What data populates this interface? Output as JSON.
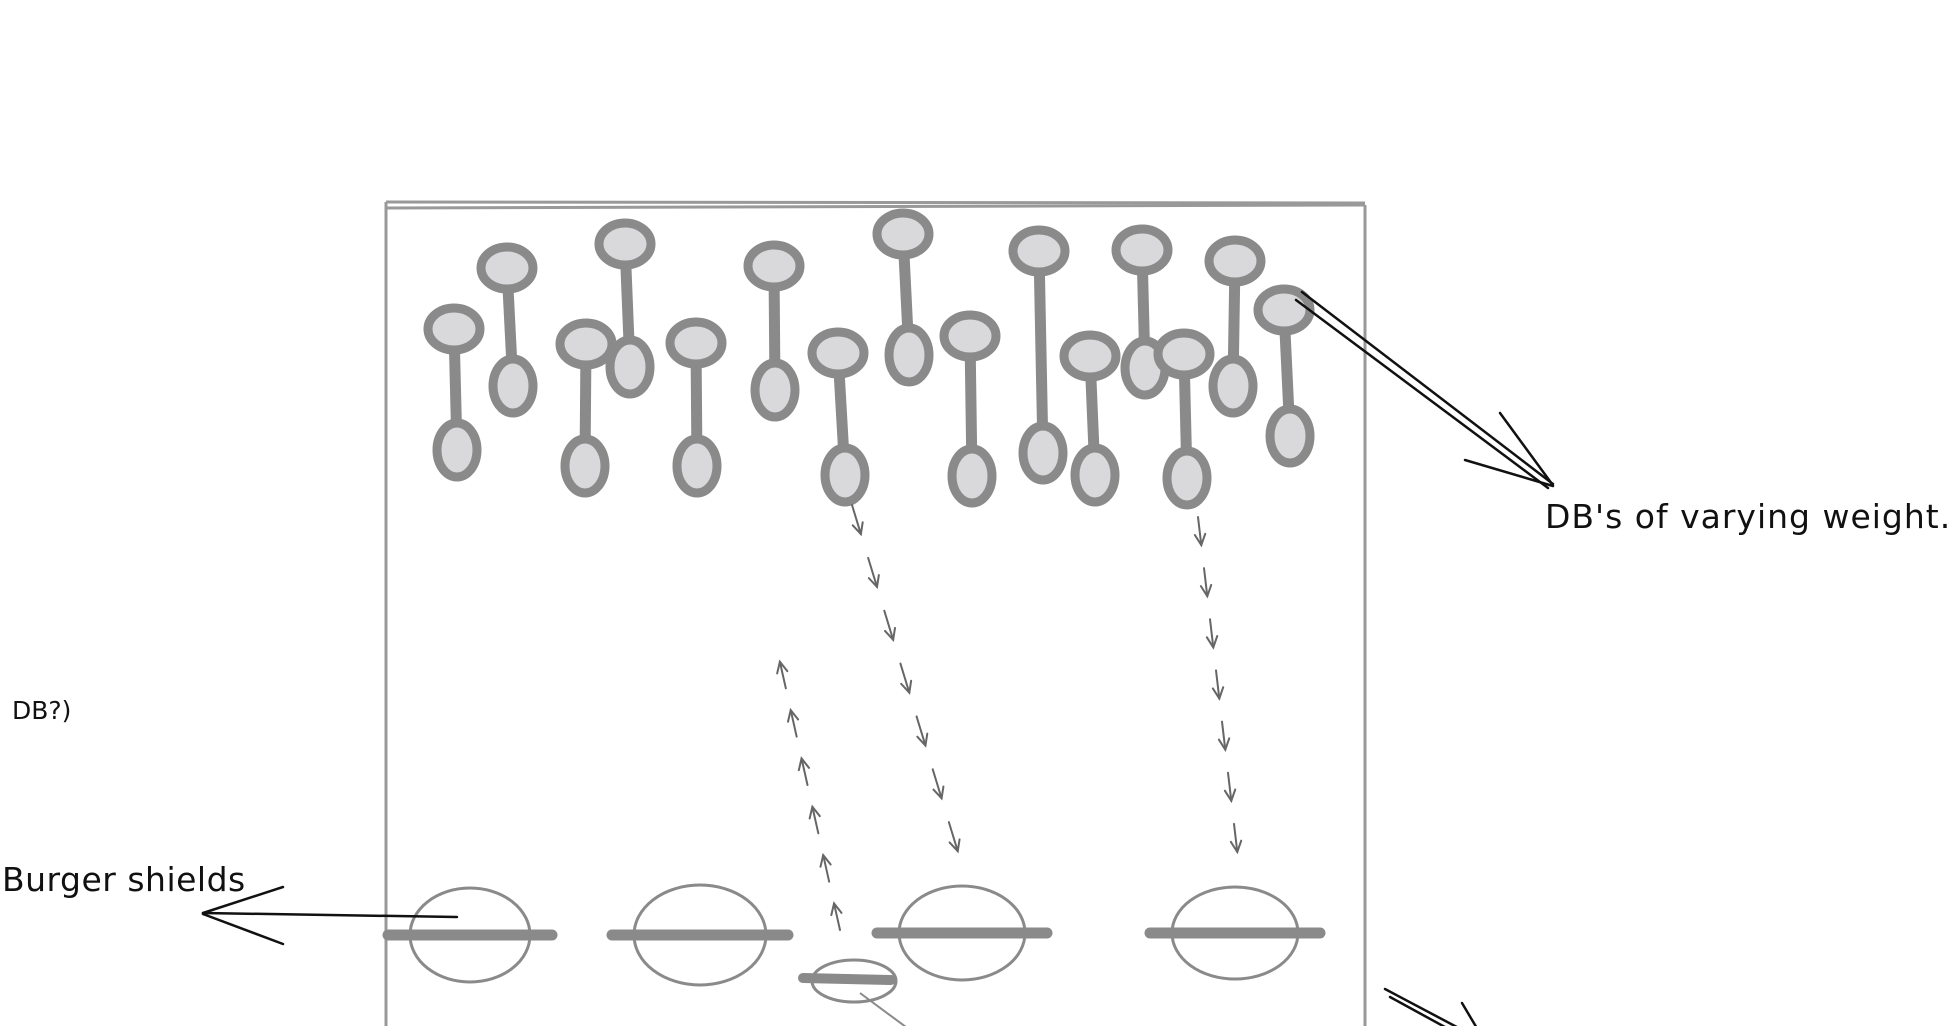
{
  "labels": {
    "db_varying_weight": "DB's of varying weight.",
    "burger_shields": "Burger shields",
    "partial_fragment": "DB?)"
  },
  "colors": {
    "sketch_stroke": "#8a8a8a",
    "sketch_fill": "#d9d9dc",
    "ink": "#111111",
    "box": "#999999"
  },
  "icons": {
    "dumbbell": "dumbbell-icon",
    "shield": "burger-shield-icon",
    "arrow": "arrow-icon"
  }
}
